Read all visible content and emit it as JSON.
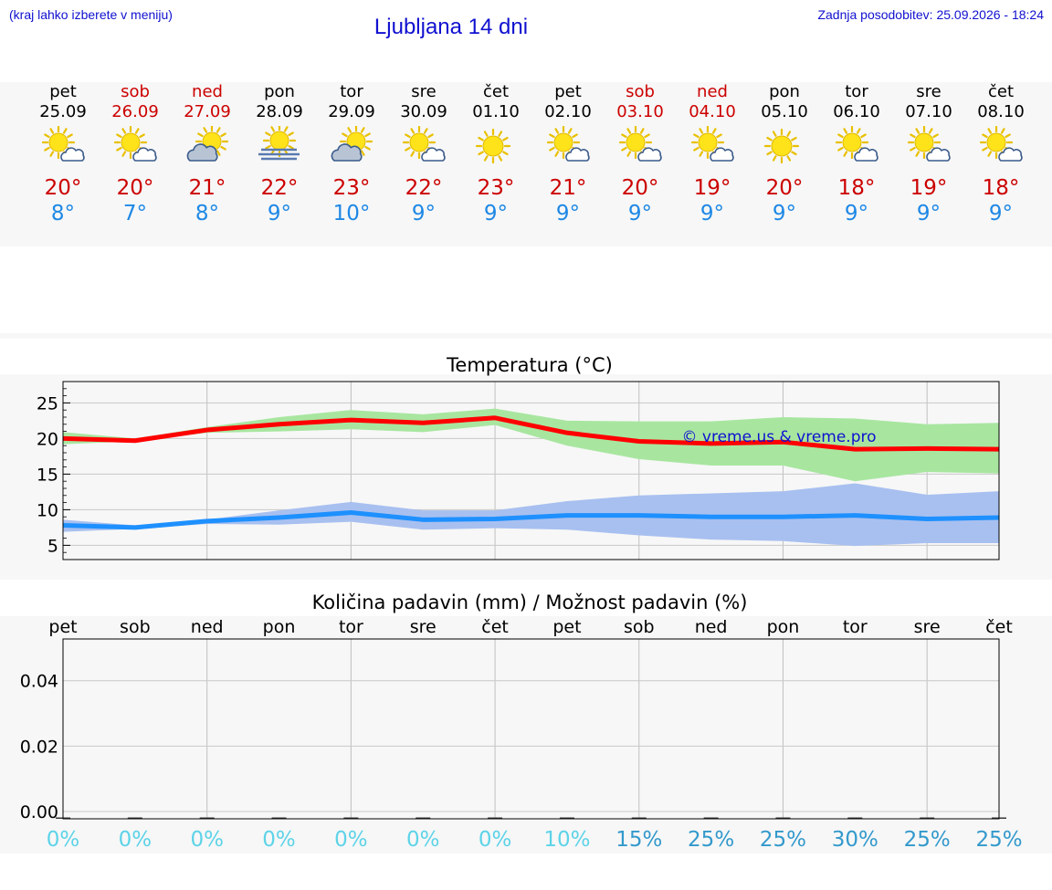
{
  "header": {
    "hint": "(kraj lahko izberete v meniju)",
    "title": "Ljubljana 14 dni",
    "updated": "Zadnja posodobitev: 25.09.2026 - 18:24"
  },
  "forecast": [
    {
      "day": "pet",
      "date": "25.09",
      "weekend": false,
      "icon": "sun-cloud-icon",
      "max": "20°",
      "min": "8°"
    },
    {
      "day": "sob",
      "date": "26.09",
      "weekend": true,
      "icon": "sun-cloud-icon",
      "max": "20°",
      "min": "7°"
    },
    {
      "day": "ned",
      "date": "27.09",
      "weekend": true,
      "icon": "cloud-sun-icon",
      "max": "21°",
      "min": "8°"
    },
    {
      "day": "pon",
      "date": "28.09",
      "weekend": false,
      "icon": "sun-fog-icon",
      "max": "22°",
      "min": "9°"
    },
    {
      "day": "tor",
      "date": "29.09",
      "weekend": false,
      "icon": "cloud-sun-icon",
      "max": "23°",
      "min": "10°"
    },
    {
      "day": "sre",
      "date": "30.09",
      "weekend": false,
      "icon": "sun-cloud-icon",
      "max": "22°",
      "min": "9°"
    },
    {
      "day": "čet",
      "date": "01.10",
      "weekend": false,
      "icon": "sun-icon",
      "max": "23°",
      "min": "9°"
    },
    {
      "day": "pet",
      "date": "02.10",
      "weekend": false,
      "icon": "sun-cloud-icon",
      "max": "21°",
      "min": "9°"
    },
    {
      "day": "sob",
      "date": "03.10",
      "weekend": true,
      "icon": "sun-cloud-icon",
      "max": "20°",
      "min": "9°"
    },
    {
      "day": "ned",
      "date": "04.10",
      "weekend": true,
      "icon": "sun-cloud-icon",
      "max": "19°",
      "min": "9°"
    },
    {
      "day": "pon",
      "date": "05.10",
      "weekend": false,
      "icon": "sun-icon",
      "max": "20°",
      "min": "9°"
    },
    {
      "day": "tor",
      "date": "06.10",
      "weekend": false,
      "icon": "sun-cloud-icon",
      "max": "18°",
      "min": "9°"
    },
    {
      "day": "sre",
      "date": "07.10",
      "weekend": false,
      "icon": "sun-cloud-icon",
      "max": "19°",
      "min": "9°"
    },
    {
      "day": "čet",
      "date": "08.10",
      "weekend": false,
      "icon": "sun-cloud-icon",
      "max": "18°",
      "min": "9°"
    }
  ],
  "colors": {
    "weekday": "#000000",
    "weekend": "#cc0000",
    "max_line": "#ff0000",
    "max_band": "#a8e6a0",
    "min_line": "#1e90ff",
    "min_band": "#a8c0f0",
    "precip_low": "#5dd3e8",
    "precip_high": "#3399cc"
  },
  "chart_data": [
    {
      "type": "line",
      "title": "Temperatura (°C)",
      "watermark": "© vreme.us & vreme.pro",
      "ylim": [
        3,
        28
      ],
      "yticks": [
        "5",
        "10",
        "15",
        "20",
        "25"
      ],
      "grid": true,
      "series": [
        {
          "values": [
            20.0,
            19.7,
            21.2,
            22.0,
            22.6,
            22.2,
            22.9,
            20.8,
            19.6,
            19.3,
            19.5,
            18.5,
            18.6,
            18.5
          ],
          "band_low": [
            19.2,
            19.6,
            20.8,
            21.0,
            21.3,
            20.9,
            21.9,
            19.0,
            17.1,
            16.2,
            16.2,
            14.0,
            15.3,
            15.1
          ],
          "band_high": [
            20.9,
            20.0,
            21.6,
            23.0,
            24.0,
            23.4,
            24.2,
            22.5,
            22.4,
            22.4,
            23.0,
            22.8,
            22.0,
            22.2
          ]
        },
        {
          "values": [
            7.8,
            7.5,
            8.4,
            8.9,
            9.6,
            8.6,
            8.7,
            9.2,
            9.2,
            9.0,
            9.0,
            9.2,
            8.7,
            8.9
          ],
          "band_low": [
            6.9,
            7.3,
            8.0,
            7.9,
            8.3,
            7.2,
            7.4,
            7.2,
            6.4,
            5.8,
            5.6,
            4.9,
            5.3,
            5.3
          ],
          "band_high": [
            8.6,
            7.8,
            8.6,
            9.9,
            11.1,
            9.9,
            9.9,
            11.2,
            12.0,
            12.3,
            12.6,
            13.7,
            12.1,
            12.6
          ]
        }
      ]
    },
    {
      "type": "bar",
      "title": "Količina padavin (mm) / Možnost padavin (%)",
      "categories": [
        "pet",
        "sob",
        "ned",
        "pon",
        "tor",
        "sre",
        "čet",
        "pet",
        "sob",
        "ned",
        "pon",
        "tor",
        "sre",
        "čet"
      ],
      "values": [
        0,
        0,
        0,
        0,
        0,
        0,
        0,
        0,
        0,
        0,
        0,
        0,
        0,
        0
      ],
      "ylim": [
        0,
        0.055
      ],
      "yticks": [
        "0.00",
        "0.02",
        "0.04"
      ],
      "probability": [
        "0%",
        "0%",
        "0%",
        "0%",
        "0%",
        "0%",
        "0%",
        "10%",
        "15%",
        "25%",
        "25%",
        "30%",
        "25%",
        "25%"
      ],
      "grid": true
    }
  ]
}
